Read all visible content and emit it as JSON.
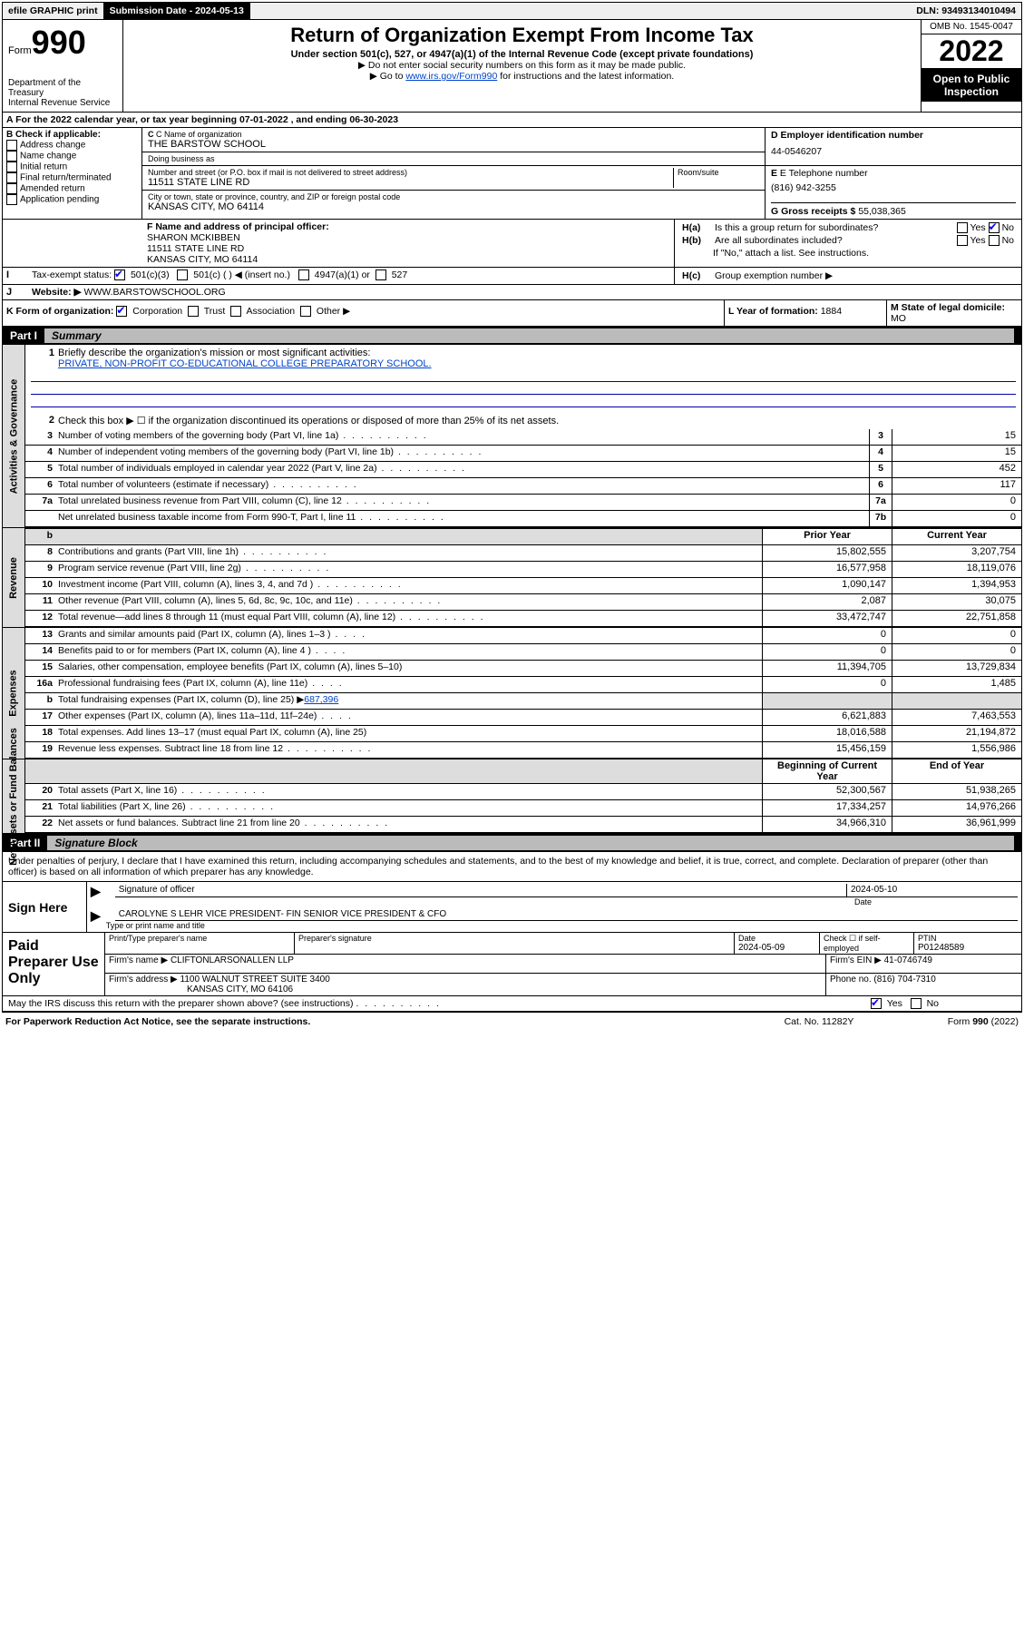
{
  "top_bar": {
    "efile": "efile GRAPHIC print",
    "sub_date_label": "Submission Date - 2024-05-13",
    "dln": "DLN: 93493134010494"
  },
  "header": {
    "form_label": "Form",
    "form_num": "990",
    "dept": "Department of the Treasury",
    "irs": "Internal Revenue Service",
    "title": "Return of Organization Exempt From Income Tax",
    "subtitle": "Under section 501(c), 527, or 4947(a)(1) of the Internal Revenue Code (except private foundations)",
    "instr1": "▶ Do not enter social security numbers on this form as it may be made public.",
    "instr2_pre": "▶ Go to ",
    "instr2_link": "www.irs.gov/Form990",
    "instr2_post": " for instructions and the latest information.",
    "omb": "OMB No. 1545-0047",
    "year": "2022",
    "open": "Open to Public Inspection"
  },
  "period": {
    "line": "For the 2022 calendar year, or tax year beginning 07-01-2022   , and ending 06-30-2023"
  },
  "section_b": {
    "title": "B Check if applicable:",
    "opts": [
      "Address change",
      "Name change",
      "Initial return",
      "Final return/terminated",
      "Amended return",
      "Application pending"
    ]
  },
  "section_c": {
    "name_label": "C Name of organization",
    "name": "THE BARSTOW SCHOOL",
    "dba_label": "Doing business as",
    "dba": "",
    "addr_label": "Number and street (or P.O. box if mail is not delivered to street address)",
    "room_label": "Room/suite",
    "addr": "11511 STATE LINE RD",
    "city_label": "City or town, state or province, country, and ZIP or foreign postal code",
    "city": "KANSAS CITY, MO  64114"
  },
  "section_d": {
    "label": "D Employer identification number",
    "val": "44-0546207"
  },
  "section_e": {
    "label": "E Telephone number",
    "val": "(816) 942-3255"
  },
  "section_g": {
    "label": "G Gross receipts $",
    "val": "55,038,365"
  },
  "section_f": {
    "label": "F Name and address of principal officer:",
    "name": "SHARON MCKIBBEN",
    "addr1": "11511 STATE LINE RD",
    "addr2": "KANSAS CITY, MO  64114"
  },
  "section_h": {
    "ha": "Is this a group return for subordinates?",
    "hb": "Are all subordinates included?",
    "hb_note": "If \"No,\" attach a list. See instructions.",
    "hc": "Group exemption number ▶",
    "yes": "Yes",
    "no": "No"
  },
  "section_i": {
    "label": "Tax-exempt status:",
    "c3": "501(c)(3)",
    "c_other": "501(c) (  ) ◀ (insert no.)",
    "a1": "4947(a)(1) or",
    "s527": "527"
  },
  "section_j": {
    "label": "Website: ▶",
    "val": "WWW.BARSTOWSCHOOL.ORG"
  },
  "section_k": {
    "label": "K Form of organization:",
    "corp": "Corporation",
    "trust": "Trust",
    "assoc": "Association",
    "other": "Other ▶"
  },
  "section_l": {
    "label": "L Year of formation:",
    "val": "1884"
  },
  "section_m": {
    "label": "M State of legal domicile:",
    "val": "MO"
  },
  "part1": {
    "header_num": "Part I",
    "header_title": "Summary",
    "q1": "Briefly describe the organization's mission or most significant activities:",
    "mission": "PRIVATE, NON-PROFIT CO-EDUCATIONAL COLLEGE PREPARATORY SCHOOL.",
    "q2": "Check this box ▶ ☐  if the organization discontinued its operations or disposed of more than 25% of its net assets.",
    "rows_gov": [
      {
        "n": "3",
        "d": "Number of voting members of the governing body (Part VI, line 1a)",
        "b": "3",
        "v": "15"
      },
      {
        "n": "4",
        "d": "Number of independent voting members of the governing body (Part VI, line 1b)",
        "b": "4",
        "v": "15"
      },
      {
        "n": "5",
        "d": "Total number of individuals employed in calendar year 2022 (Part V, line 2a)",
        "b": "5",
        "v": "452"
      },
      {
        "n": "6",
        "d": "Total number of volunteers (estimate if necessary)",
        "b": "6",
        "v": "117"
      },
      {
        "n": "7a",
        "d": "Total unrelated business revenue from Part VIII, column (C), line 12",
        "b": "7a",
        "v": "0"
      },
      {
        "n": "",
        "d": "Net unrelated business taxable income from Form 990-T, Part I, line 11",
        "b": "7b",
        "v": "0"
      }
    ],
    "header_cols": {
      "prior": "Prior Year",
      "current": "Current Year"
    },
    "rows_rev": [
      {
        "n": "8",
        "d": "Contributions and grants (Part VIII, line 1h)",
        "p": "15,802,555",
        "c": "3,207,754"
      },
      {
        "n": "9",
        "d": "Program service revenue (Part VIII, line 2g)",
        "p": "16,577,958",
        "c": "18,119,076"
      },
      {
        "n": "10",
        "d": "Investment income (Part VIII, column (A), lines 3, 4, and 7d )",
        "p": "1,090,147",
        "c": "1,394,953"
      },
      {
        "n": "11",
        "d": "Other revenue (Part VIII, column (A), lines 5, 6d, 8c, 9c, 10c, and 11e)",
        "p": "2,087",
        "c": "30,075"
      },
      {
        "n": "12",
        "d": "Total revenue—add lines 8 through 11 (must equal Part VIII, column (A), line 12)",
        "p": "33,472,747",
        "c": "22,751,858"
      }
    ],
    "rows_exp": [
      {
        "n": "13",
        "d": "Grants and similar amounts paid (Part IX, column (A), lines 1–3 )",
        "p": "0",
        "c": "0",
        "dots": "s"
      },
      {
        "n": "14",
        "d": "Benefits paid to or for members (Part IX, column (A), line 4 )",
        "p": "0",
        "c": "0",
        "dots": "s"
      },
      {
        "n": "15",
        "d": "Salaries, other compensation, employee benefits (Part IX, column (A), lines 5–10)",
        "p": "11,394,705",
        "c": "13,729,834",
        "dots": ""
      },
      {
        "n": "16a",
        "d": "Professional fundraising fees (Part IX, column (A), line 11e)",
        "p": "0",
        "c": "1,485",
        "dots": "s"
      }
    ],
    "row16b": {
      "n": "b",
      "d": "Total fundraising expenses (Part IX, column (D), line 25) ▶",
      "v": "687,396"
    },
    "rows_exp2": [
      {
        "n": "17",
        "d": "Other expenses (Part IX, column (A), lines 11a–11d, 11f–24e)",
        "p": "6,621,883",
        "c": "7,463,553",
        "dots": "s"
      },
      {
        "n": "18",
        "d": "Total expenses. Add lines 13–17 (must equal Part IX, column (A), line 25)",
        "p": "18,016,588",
        "c": "21,194,872",
        "dots": ""
      },
      {
        "n": "19",
        "d": "Revenue less expenses. Subtract line 18 from line 12",
        "p": "15,456,159",
        "c": "1,556,986",
        "dots": "m"
      }
    ],
    "header_cols2": {
      "beg": "Beginning of Current Year",
      "end": "End of Year"
    },
    "rows_net": [
      {
        "n": "20",
        "d": "Total assets (Part X, line 16)",
        "p": "52,300,567",
        "c": "51,938,265"
      },
      {
        "n": "21",
        "d": "Total liabilities (Part X, line 26)",
        "p": "17,334,257",
        "c": "14,976,266"
      },
      {
        "n": "22",
        "d": "Net assets or fund balances. Subtract line 21 from line 20",
        "p": "34,966,310",
        "c": "36,961,999"
      }
    ],
    "side_labels": {
      "gov": "Activities & Governance",
      "rev": "Revenue",
      "exp": "Expenses",
      "net": "Net Assets or Fund Balances"
    }
  },
  "part2": {
    "header_num": "Part II",
    "header_title": "Signature Block",
    "decl": "Under penalties of perjury, I declare that I have examined this return, including accompanying schedules and statements, and to the best of my knowledge and belief, it is true, correct, and complete. Declaration of preparer (other than officer) is based on all information of which preparer has any knowledge."
  },
  "sign": {
    "title": "Sign Here",
    "sig_label": "Signature of officer",
    "date_label": "Date",
    "date_val": "2024-05-10",
    "name": "CAROLYNE S LEHR VICE PRESIDENT- FIN  SENIOR VICE PRESIDENT & CFO",
    "name_label": "Type or print name and title"
  },
  "preparer": {
    "title": "Paid Preparer Use Only",
    "h1": "Print/Type preparer's name",
    "h2": "Preparer's signature",
    "h3": "Date",
    "h3v": "2024-05-09",
    "h4": "Check ☐ if self-employed",
    "h5": "PTIN",
    "h5v": "P01248589",
    "firm_label": "Firm's name    ▶",
    "firm": "CLIFTONLARSONALLEN LLP",
    "ein_label": "Firm's EIN ▶",
    "ein": "41-0746749",
    "addr_label": "Firm's address ▶",
    "addr": "1100 WALNUT STREET SUITE 3400",
    "addr2": "KANSAS CITY, MO  64106",
    "phone_label": "Phone no.",
    "phone": "(816) 704-7310"
  },
  "footer": {
    "q": "May the IRS discuss this return with the preparer shown above? (see instructions)",
    "yes": "Yes",
    "no": "No",
    "pra": "For Paperwork Reduction Act Notice, see the separate instructions.",
    "cat": "Cat. No. 11282Y",
    "form": "Form 990 (2022)",
    "form_bold": "990"
  },
  "colors": {
    "link": "#0044cc",
    "check": "#0000ff"
  }
}
